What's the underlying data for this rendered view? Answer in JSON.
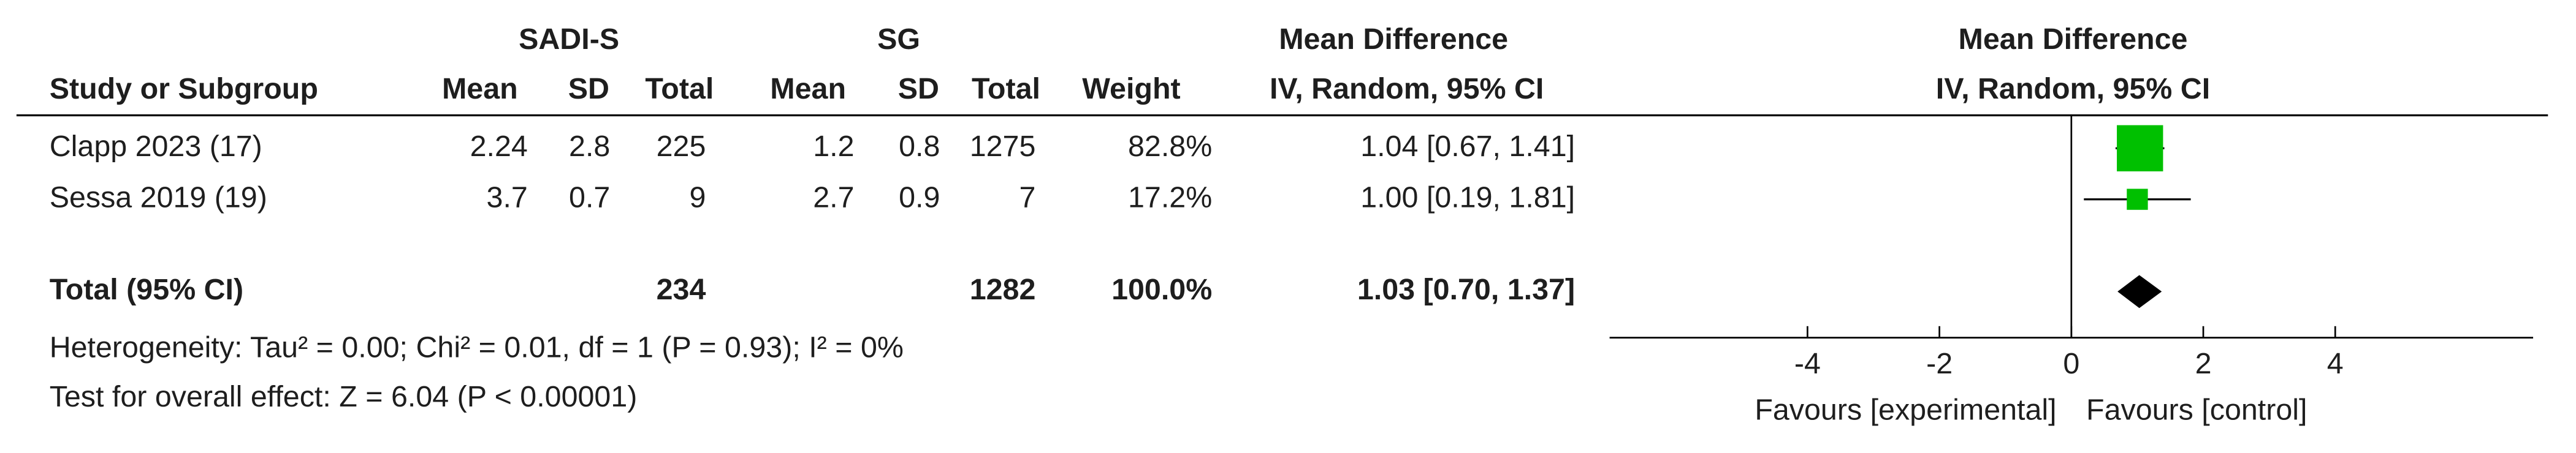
{
  "chart_data": {
    "type": "forest",
    "group_headers": [
      "SADI-S",
      "SG"
    ],
    "columns": [
      "Study or Subgroup",
      "Mean",
      "SD",
      "Total",
      "Mean",
      "SD",
      "Total",
      "Weight"
    ],
    "effect_header": "Mean Difference",
    "effect_subheader": "IV, Random, 95% CI",
    "studies": [
      {
        "name": "Clapp 2023 (17)",
        "mean1": 2.24,
        "sd1": 2.8,
        "n1": 225,
        "mean2": 1.2,
        "sd2": 0.8,
        "n2": 1275,
        "weight": 82.8,
        "weight_label": "82.8%",
        "md": 1.04,
        "ci_low": 0.67,
        "ci_high": 1.41,
        "ci_label": "1.04 [0.67, 1.41]"
      },
      {
        "name": "Sessa 2019 (19)",
        "mean1": 3.7,
        "sd1": 0.7,
        "n1": 9,
        "mean2": 2.7,
        "sd2": 0.9,
        "n2": 7,
        "weight": 17.2,
        "weight_label": "17.2%",
        "md": 1.0,
        "ci_low": 0.19,
        "ci_high": 1.81,
        "ci_label": "1.00 [0.19, 1.81]"
      }
    ],
    "total": {
      "name": "Total (95% CI)",
      "n1": 234,
      "n2": 1282,
      "weight_label": "100.0%",
      "md": 1.03,
      "ci_low": 0.7,
      "ci_high": 1.37,
      "ci_label": "1.03 [0.70, 1.37]"
    },
    "heterogeneity": "Heterogeneity: Tau² = 0.00; Chi² = 0.01, df = 1 (P = 0.93); I² = 0%",
    "overall_effect": "Test for overall effect: Z = 6.04 (P < 0.00001)",
    "xlim": [
      -7,
      7
    ],
    "xticks": [
      -4,
      -2,
      0,
      2,
      4
    ],
    "favours_left": "Favours [experimental]",
    "favours_right": "Favours [control]",
    "square_color": "#00c000",
    "diamond_color": "#000000"
  }
}
